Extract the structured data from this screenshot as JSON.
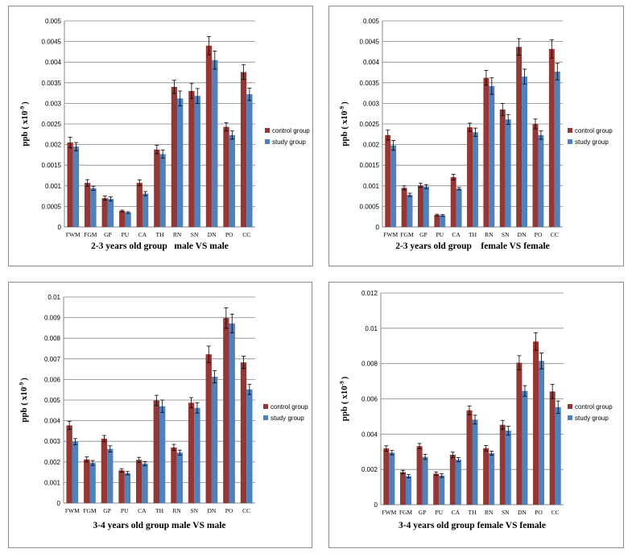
{
  "colors": {
    "control": "#953735",
    "study": "#4f81bd",
    "grid": "#868686",
    "axis": "#868686"
  },
  "ylabel_text": "ppb ( x10",
  "ylabel_exp": "-9",
  "ylabel_close": ")",
  "chart_data": [
    {
      "type": "bar",
      "title": "2-3 years old group   male VS male",
      "ylabel": "ppb ( x10-9 )",
      "categories": [
        "FWM",
        "FGM",
        "GP",
        "PU",
        "CA",
        "TH",
        "RN",
        "SN",
        "DN",
        "PO",
        "CC"
      ],
      "ylim": [
        0,
        0.005
      ],
      "yticks": [
        "0",
        "0.0005",
        "0.001",
        "0.0015",
        "0.002",
        "0.0025",
        "0.003",
        "0.0035",
        "0.004",
        "0.0045",
        "0.005"
      ],
      "legend_position": "right",
      "series": [
        {
          "name": "control group",
          "values": [
            0.00205,
            0.00107,
            0.0007,
            0.00039,
            0.00107,
            0.00188,
            0.0034,
            0.0033,
            0.0044,
            0.00243,
            0.00376
          ],
          "errors": [
            0.00013,
            8e-05,
            5e-05,
            2e-05,
            7e-05,
            0.0001,
            0.00016,
            0.00018,
            0.00022,
            0.0001,
            0.00018
          ]
        },
        {
          "name": "study group",
          "values": [
            0.00195,
            0.00094,
            0.00068,
            0.00035,
            0.00081,
            0.00177,
            0.00312,
            0.00318,
            0.00405,
            0.00223,
            0.00322
          ],
          "errors": [
            0.0001,
            5e-05,
            5e-05,
            2e-05,
            5e-05,
            0.0001,
            0.00018,
            0.00018,
            0.00022,
            0.0001,
            0.00015
          ]
        }
      ]
    },
    {
      "type": "bar",
      "title": "2-3 years old group    female VS female",
      "ylabel": "ppb ( x10-9 )",
      "categories": [
        "FWM",
        "FGM",
        "GP",
        "PU",
        "CA",
        "TH",
        "RN",
        "SN",
        "DN",
        "PO",
        "CC"
      ],
      "ylim": [
        0,
        0.005
      ],
      "yticks": [
        "0",
        "0.0005",
        "0.001",
        "0.0015",
        "0.002",
        "0.0025",
        "0.003",
        "0.0035",
        "0.004",
        "0.0045",
        "0.005"
      ],
      "legend_position": "right",
      "series": [
        {
          "name": "control group",
          "values": [
            0.00223,
            0.00095,
            0.00101,
            0.00029,
            0.00121,
            0.00242,
            0.00362,
            0.00285,
            0.00437,
            0.0025,
            0.00432
          ],
          "errors": [
            0.00012,
            5e-05,
            5e-05,
            2e-05,
            7e-05,
            0.0001,
            0.00018,
            0.00015,
            0.0002,
            0.00012,
            0.00022
          ]
        },
        {
          "name": "study group",
          "values": [
            0.00198,
            0.00078,
            0.00098,
            0.00028,
            0.00093,
            0.0023,
            0.00342,
            0.00261,
            0.00365,
            0.00223,
            0.00377
          ],
          "errors": [
            0.00012,
            4e-05,
            5e-05,
            2e-05,
            3e-05,
            0.0001,
            0.0002,
            0.00012,
            0.00018,
            0.0001,
            0.0002
          ]
        }
      ]
    },
    {
      "type": "bar",
      "title": "3-4 years old group male VS male",
      "ylabel": "ppb ( x10-9 )",
      "categories": [
        "FWM",
        "FGM",
        "GP",
        "PU",
        "CA",
        "TH",
        "RN",
        "SN",
        "DN",
        "PO",
        "CC"
      ],
      "ylim": [
        0,
        0.01
      ],
      "yticks": [
        "0",
        "0.001",
        "0.002",
        "0.003",
        "0.004",
        "0.005",
        "0.006",
        "0.007",
        "0.008",
        "0.009",
        "0.01"
      ],
      "legend_position": "right",
      "series": [
        {
          "name": "control group",
          "values": [
            0.00377,
            0.00212,
            0.00313,
            0.00159,
            0.0021,
            0.00498,
            0.0027,
            0.00487,
            0.00722,
            0.00898,
            0.00683
          ],
          "errors": [
            0.0002,
            0.00012,
            0.00015,
            8e-05,
            0.00012,
            0.00025,
            0.00015,
            0.00025,
            0.0004,
            0.0005,
            0.0003
          ]
        },
        {
          "name": "study group",
          "values": [
            0.00298,
            0.00195,
            0.00263,
            0.00145,
            0.00192,
            0.0047,
            0.00245,
            0.00462,
            0.00613,
            0.00872,
            0.00552
          ],
          "errors": [
            0.00015,
            0.00012,
            0.00015,
            8e-05,
            0.0001,
            0.0003,
            0.00012,
            0.00025,
            0.0003,
            0.00045,
            0.00025
          ]
        }
      ]
    },
    {
      "type": "bar",
      "title": "3-4 years old group female VS female",
      "ylabel": "ppb ( x10-9 )",
      "categories": [
        "FWM",
        "FGM",
        "GP",
        "PU",
        "CA",
        "TH",
        "RN",
        "SN",
        "DN",
        "PO",
        "CC"
      ],
      "ylim": [
        0,
        0.012
      ],
      "yticks": [
        "0",
        "0.002",
        "0.004",
        "0.006",
        "0.008",
        "0.01",
        "0.012"
      ],
      "legend_position": "right",
      "series": [
        {
          "name": "control group",
          "values": [
            0.00319,
            0.00185,
            0.00332,
            0.00176,
            0.00283,
            0.00535,
            0.0032,
            0.00453,
            0.00805,
            0.00925,
            0.00642
          ],
          "errors": [
            0.00015,
            0.0001,
            0.00015,
            0.0001,
            0.00015,
            0.00025,
            0.00015,
            0.00025,
            0.0004,
            0.0005,
            0.0004
          ]
        },
        {
          "name": "study group",
          "values": [
            0.00295,
            0.00162,
            0.00271,
            0.00165,
            0.00255,
            0.00482,
            0.00292,
            0.0042,
            0.00645,
            0.00815,
            0.00553
          ],
          "errors": [
            0.00012,
            0.0001,
            0.00015,
            0.0001,
            0.00012,
            0.00025,
            0.00012,
            0.00025,
            0.0003,
            0.00045,
            0.00035
          ]
        }
      ]
    }
  ]
}
